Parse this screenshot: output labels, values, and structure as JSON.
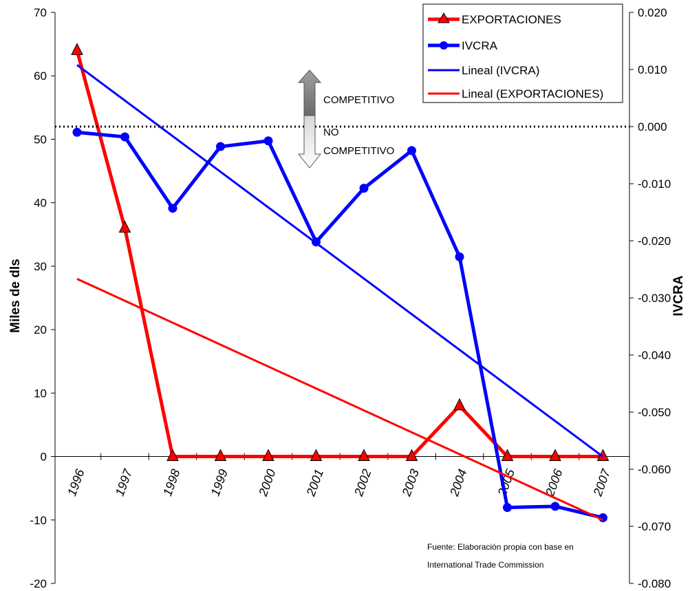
{
  "chart_data": {
    "type": "line",
    "title": "",
    "categories": [
      "1996",
      "1997",
      "1998",
      "1999",
      "2000",
      "2001",
      "2002",
      "2003",
      "2004",
      "2005",
      "2006",
      "2007"
    ],
    "y_left": {
      "label": "Miles de dls",
      "range": [
        -20,
        70
      ],
      "ticks": [
        "-20",
        "-10",
        "0",
        "10",
        "20",
        "30",
        "40",
        "50",
        "60",
        "70"
      ]
    },
    "y_right": {
      "label": "IVCRA",
      "range": [
        -0.08,
        0.02
      ],
      "ticks": [
        "-0.080",
        "-0.070",
        "-0.060",
        "-0.050",
        "-0.040",
        "-0.030",
        "-0.020",
        "-0.010",
        "0.000",
        "0.010",
        "0.020"
      ]
    },
    "series": [
      {
        "name": "EXPORTACIONES",
        "axis": "left",
        "color": "#ff0000",
        "marker": "triangle",
        "values": [
          64,
          36,
          0,
          0,
          0,
          0,
          0,
          0,
          8,
          0,
          0,
          0
        ]
      },
      {
        "name": "IVCRA",
        "axis": "right",
        "color": "#0000ff",
        "marker": "circle",
        "values": [
          -0.001,
          -0.0018,
          -0.0143,
          -0.0035,
          -0.0025,
          -0.0202,
          -0.0108,
          -0.0042,
          -0.0228,
          -0.0667,
          -0.0665,
          -0.0685
        ]
      },
      {
        "name": "Lineal (IVCRA)",
        "axis": "right",
        "color": "#0000ff",
        "type": "trend",
        "start": [
          1996,
          0.0108
        ],
        "end": [
          2007,
          -0.0578
        ]
      },
      {
        "name": "Lineal (EXPORTACIONES)",
        "axis": "left",
        "color": "#ff0000",
        "type": "trend",
        "start": [
          1996,
          28
        ],
        "end": [
          2007,
          -10
        ]
      }
    ],
    "legend_position": "top-right",
    "reference_line": {
      "axis": "right",
      "value": 0.0,
      "style": "dotted"
    },
    "annotations": {
      "up_label": "COMPETITIVO",
      "down_label_1": "NO",
      "down_label_2": "COMPETITIVO"
    },
    "source_line_1": "Fuente: Elaboración propia con base en",
    "source_line_2": "International Trade Commission"
  }
}
